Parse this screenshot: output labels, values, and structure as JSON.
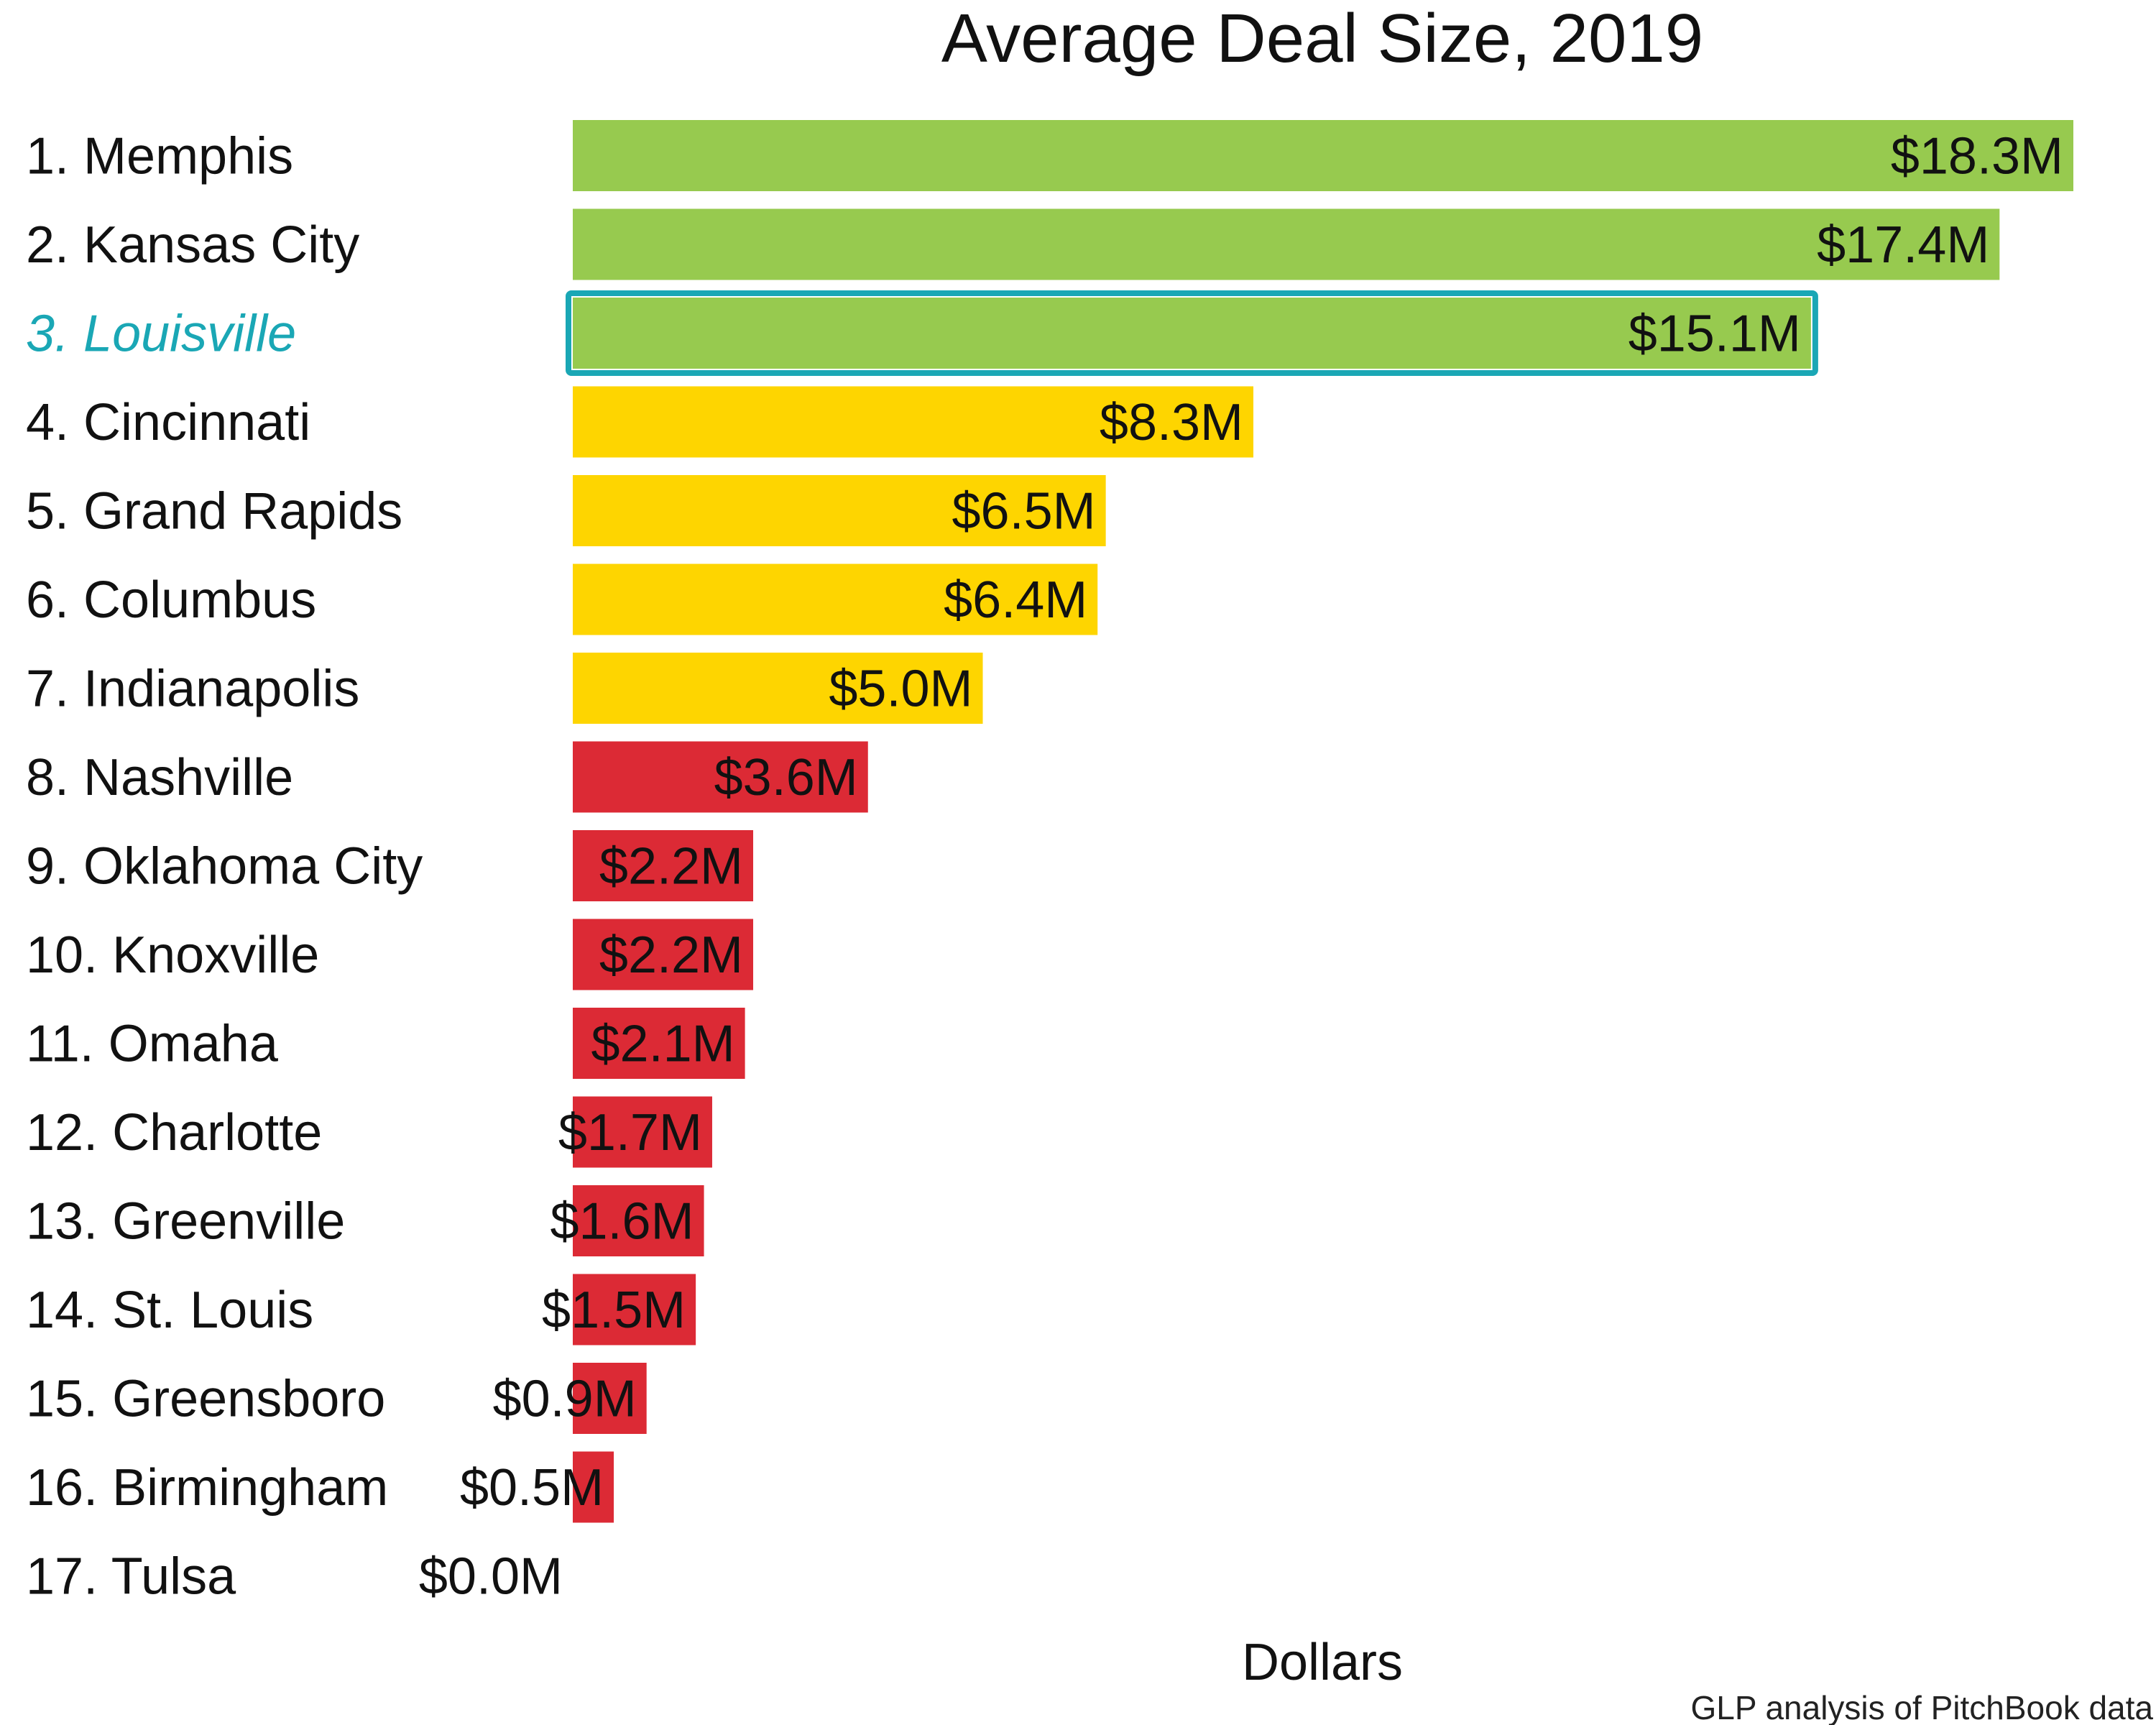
{
  "chart_data": {
    "type": "bar",
    "orientation": "horizontal",
    "title": "Average Deal Size, 2019",
    "xlabel": "Dollars",
    "ylabel": "",
    "xlim": [
      0,
      18.3
    ],
    "grid": false,
    "categories": [
      "1. Memphis",
      "2. Kansas City",
      "3. Louisville",
      "4. Cincinnati",
      "5. Grand Rapids",
      "6. Columbus",
      "7. Indianapolis",
      "8. Nashville",
      "9. Oklahoma City",
      "10. Knoxville",
      "11. Omaha",
      "12. Charlotte",
      "13. Greenville",
      "14. St. Louis",
      "15. Greensboro",
      "16. Birmingham",
      "17. Tulsa"
    ],
    "values": [
      18.3,
      17.4,
      15.1,
      8.3,
      6.5,
      6.4,
      5.0,
      3.6,
      2.2,
      2.2,
      2.1,
      1.7,
      1.6,
      1.5,
      0.9,
      0.5,
      0.0
    ],
    "value_labels": [
      "$18.3M",
      "$17.4M",
      "$15.1M",
      "$8.3M",
      "$6.5M",
      "$6.4M",
      "$5.0M",
      "$3.6M",
      "$2.2M",
      "$2.2M",
      "$2.1M",
      "$1.7M",
      "$1.6M",
      "$1.5M",
      "$0.9M",
      "$0.5M",
      "$0.0M"
    ],
    "bar_colors": [
      "#97ca4f",
      "#97ca4f",
      "#97ca4f",
      "#fed500",
      "#fed500",
      "#fed500",
      "#fed500",
      "#dc2a35",
      "#dc2a35",
      "#dc2a35",
      "#dc2a35",
      "#dc2a35",
      "#dc2a35",
      "#dc2a35",
      "#dc2a35",
      "#dc2a35",
      "#dc2a35"
    ],
    "highlight_index": 2,
    "highlight_color": "#1aa7b5",
    "source": "GLP analysis of PitchBook data"
  }
}
